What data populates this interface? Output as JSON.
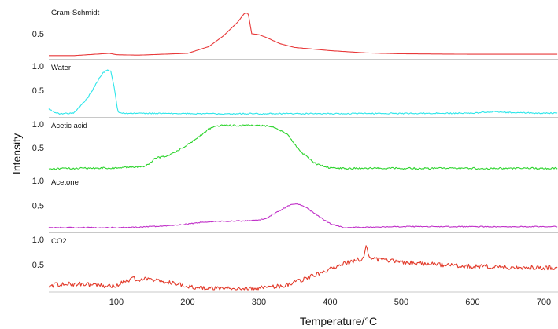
{
  "chart_data": {
    "type": "line",
    "xlabel": "Temperature/°C",
    "ylabel": "Intensity",
    "xlim": [
      5,
      720
    ],
    "xticks": [
      "100",
      "200",
      "300",
      "400",
      "500",
      "600",
      "700"
    ],
    "grid": false,
    "panels": [
      {
        "name": "Gram-Schmidt",
        "color": "#e8393a",
        "yticks": [
          "0.5"
        ],
        "ylim": [
          0,
          1.05
        ],
        "noise": 0,
        "x": [
          5,
          40,
          80,
          90,
          100,
          130,
          200,
          230,
          250,
          270,
          280,
          285,
          290,
          300,
          310,
          330,
          350,
          400,
          450,
          500,
          600,
          720
        ],
        "values": [
          0.02,
          0.02,
          0.06,
          0.07,
          0.04,
          0.03,
          0.07,
          0.22,
          0.45,
          0.75,
          0.95,
          0.95,
          0.5,
          0.48,
          0.42,
          0.28,
          0.2,
          0.13,
          0.08,
          0.06,
          0.05,
          0.05
        ]
      },
      {
        "name": "Water",
        "color": "#2ee6ea",
        "yticks": [
          "1.0",
          "0.5"
        ],
        "ylim": [
          0,
          1.05
        ],
        "noise": 0.012,
        "x": [
          5,
          12,
          20,
          40,
          60,
          70,
          80,
          87,
          92,
          97,
          102,
          108,
          200,
          400,
          600,
          630,
          650,
          700,
          720
        ],
        "values": [
          0.12,
          0.05,
          0.02,
          0.03,
          0.35,
          0.6,
          0.85,
          0.92,
          0.9,
          0.55,
          0.05,
          0.03,
          0.02,
          0.02,
          0.03,
          0.06,
          0.04,
          0.03,
          0.03
        ]
      },
      {
        "name": "Acetic acid",
        "color": "#2ed42e",
        "yticks": [
          "1.0",
          "0.5"
        ],
        "ylim": [
          0,
          1.05
        ],
        "noise": 0.018,
        "x": [
          5,
          100,
          140,
          148,
          155,
          170,
          180,
          190,
          200,
          210,
          220,
          230,
          240,
          250,
          300,
          320,
          340,
          350,
          360,
          380,
          400,
          420,
          720
        ],
        "values": [
          0.05,
          0.07,
          0.1,
          0.18,
          0.28,
          0.32,
          0.38,
          0.47,
          0.56,
          0.66,
          0.78,
          0.9,
          0.96,
          0.97,
          0.97,
          0.95,
          0.78,
          0.58,
          0.4,
          0.15,
          0.07,
          0.06,
          0.06
        ]
      },
      {
        "name": "Acetone",
        "color": "#c030c8",
        "yticks": [
          "1.0",
          "0.5"
        ],
        "ylim": [
          0,
          1.05
        ],
        "noise": 0.01,
        "x": [
          5,
          100,
          130,
          160,
          200,
          220,
          250,
          290,
          300,
          310,
          330,
          345,
          355,
          365,
          380,
          400,
          420,
          450,
          500,
          720
        ],
        "values": [
          0.05,
          0.05,
          0.06,
          0.08,
          0.12,
          0.16,
          0.18,
          0.19,
          0.2,
          0.24,
          0.4,
          0.52,
          0.53,
          0.47,
          0.32,
          0.13,
          0.05,
          0.06,
          0.07,
          0.07
        ]
      },
      {
        "name": "CO2",
        "color": "#e23a2a",
        "yticks": [
          "1.0",
          "0.5"
        ],
        "ylim": [
          0,
          1.05
        ],
        "noise": 0.045,
        "x": [
          5,
          30,
          60,
          100,
          110,
          125,
          145,
          170,
          200,
          210,
          240,
          280,
          320,
          340,
          360,
          380,
          400,
          420,
          440,
          448,
          451,
          454,
          470,
          500,
          550,
          600,
          650,
          700,
          720
        ],
        "values": [
          0.08,
          0.12,
          0.1,
          0.07,
          0.17,
          0.22,
          0.2,
          0.15,
          0.07,
          0.03,
          0.02,
          0.02,
          0.05,
          0.1,
          0.2,
          0.3,
          0.42,
          0.52,
          0.6,
          0.62,
          0.98,
          0.62,
          0.6,
          0.55,
          0.5,
          0.47,
          0.45,
          0.44,
          0.44
        ]
      }
    ]
  }
}
